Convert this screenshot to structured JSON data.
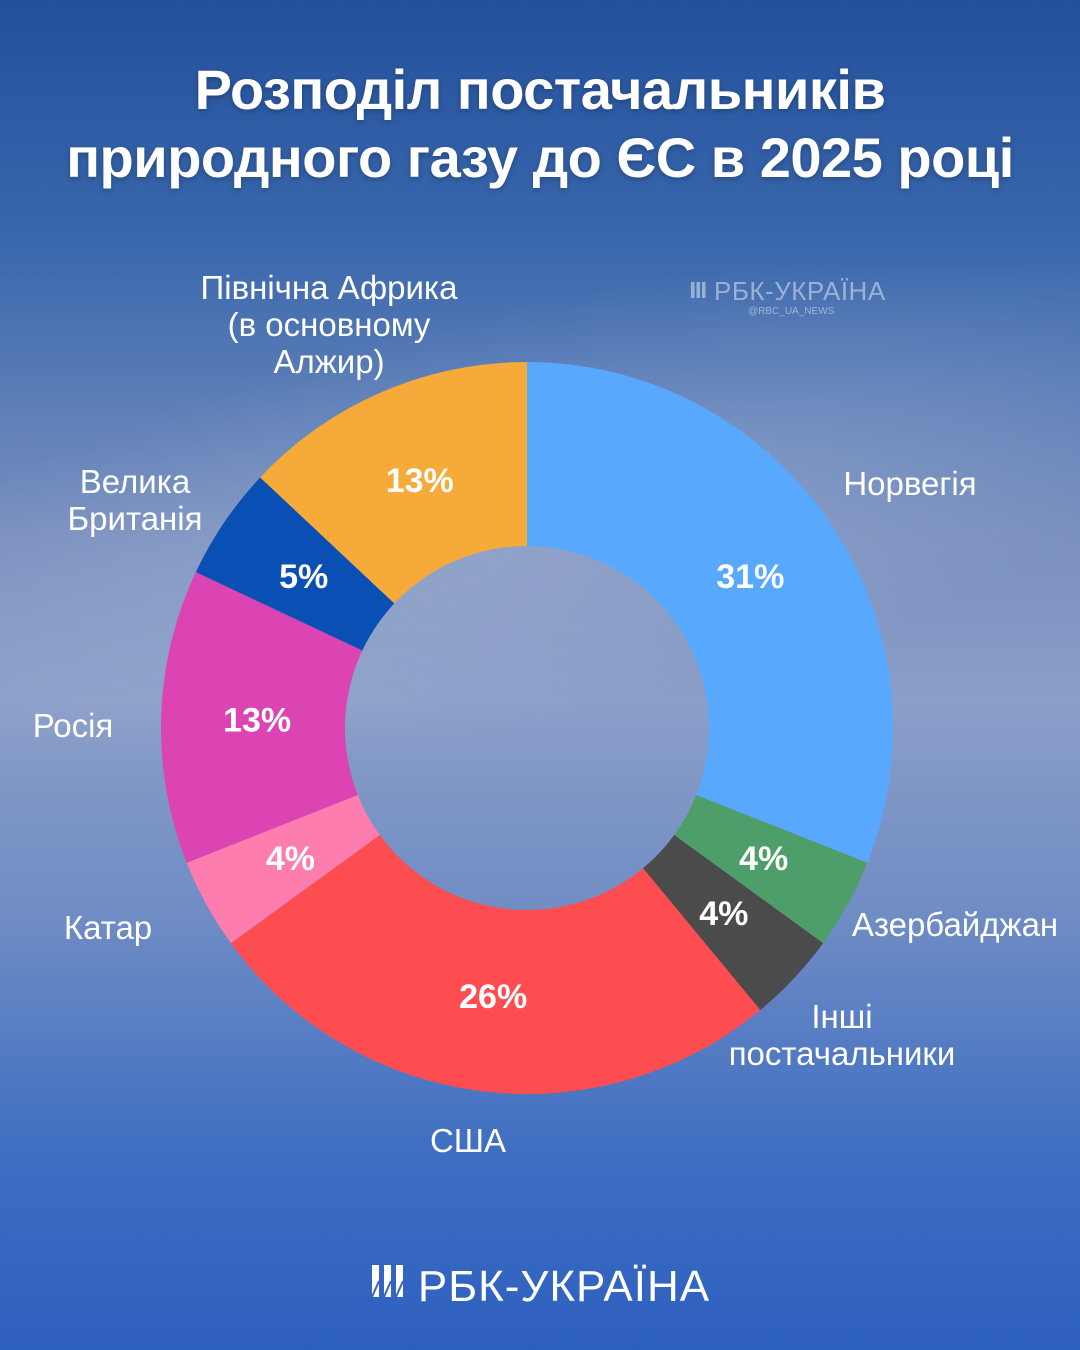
{
  "title": {
    "line1": "Розподіл постачальників",
    "line2": "природного газу до ЄС в 2025 році"
  },
  "watermark": {
    "brand": "РБК-УКРАЇНА",
    "handle": "@RBC_UA_NEWS"
  },
  "footer": {
    "brand": "РБК-УКРАЇНА"
  },
  "colors": {
    "norway": "#58a8fe",
    "azerbaijan": "#4e9e6a",
    "others": "#4b4b4b",
    "usa": "#fe4d50",
    "qatar": "#fd7eae",
    "russia": "#dc44b4",
    "uk": "#0a4fb4",
    "north_africa": "#f5aa3a"
  },
  "chart_data": {
    "type": "pie",
    "subtype": "donut",
    "title": "Розподіл постачальників природного газу до ЄС в 2025 році",
    "unit": "%",
    "slices": [
      {
        "key": "norway",
        "label": [
          "Норвегія"
        ],
        "value": 31,
        "value_label": "31%",
        "color": "#58a8fe"
      },
      {
        "key": "azerbaijan",
        "label": [
          "Азербайджан"
        ],
        "value": 4,
        "value_label": "4%",
        "color": "#4e9e6a"
      },
      {
        "key": "others",
        "label": [
          "Інші",
          "постачальники"
        ],
        "value": 4,
        "value_label": "4%",
        "color": "#4b4b4b"
      },
      {
        "key": "usa",
        "label": [
          "США"
        ],
        "value": 26,
        "value_label": "26%",
        "color": "#fe4d50"
      },
      {
        "key": "qatar",
        "label": [
          "Катар"
        ],
        "value": 4,
        "value_label": "4%",
        "color": "#fd7eae"
      },
      {
        "key": "russia",
        "label": [
          "Росія"
        ],
        "value": 13,
        "value_label": "13%",
        "color": "#dc44b4"
      },
      {
        "key": "uk",
        "label": [
          "Велика",
          "Британія"
        ],
        "value": 5,
        "value_label": "5%",
        "color": "#0a4fb4"
      },
      {
        "key": "north_africa",
        "label": [
          "Північна Африка",
          "(в основному",
          "Алжир)"
        ],
        "value": 13,
        "value_label": "13%",
        "color": "#f5aa3a"
      }
    ],
    "start": "top",
    "direction": "clockwise"
  }
}
